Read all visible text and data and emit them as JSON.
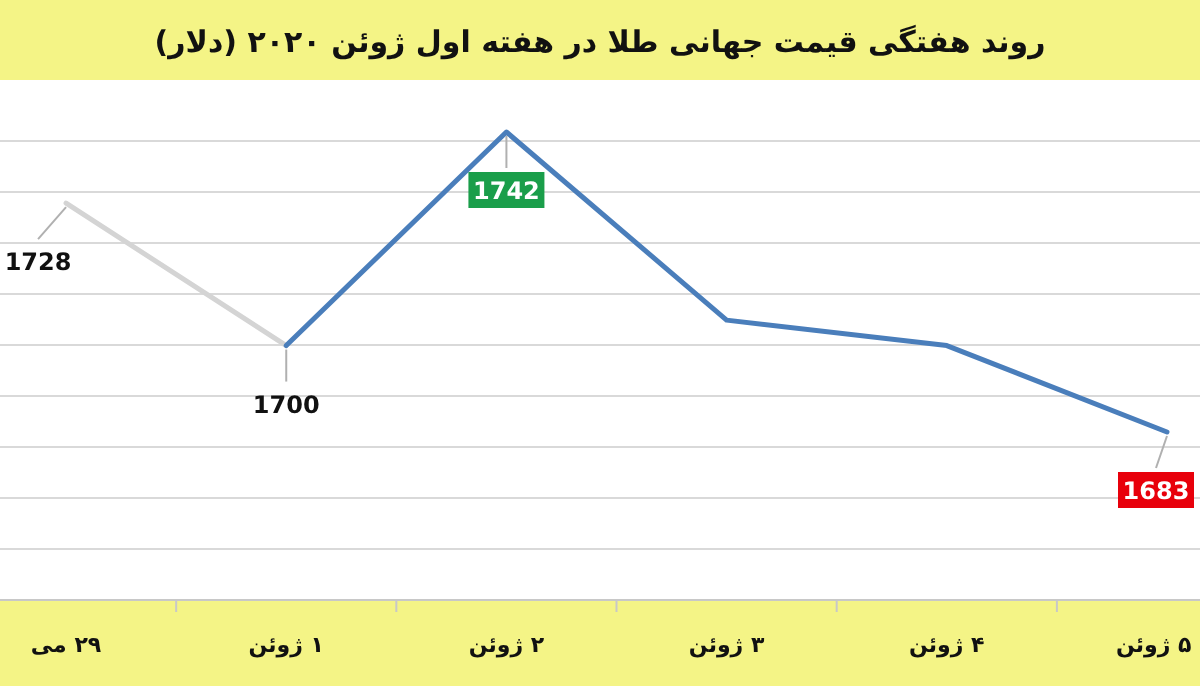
{
  "chart_data": {
    "type": "line",
    "title": "روند هفتگی قیمت جهانی طلا در هفته اول ژوئن ۲۰۲۰ (دلار)",
    "categories": [
      "۲۹ می",
      "۱ ژوئن",
      "۲ ژوئن",
      "۳ ژوئن",
      "۴ ژوئن",
      "۵ ژوئن"
    ],
    "series": [
      {
        "color": "#d4d4d4",
        "values": [
          1728,
          1700,
          null,
          null,
          null,
          null
        ],
        "value_labels": [
          "1728",
          "1700",
          null,
          null,
          null,
          null
        ]
      },
      {
        "color": "#4a7ebb",
        "values": [
          null,
          1700,
          1742,
          1705,
          1700,
          1683
        ],
        "value_labels": [
          null,
          null,
          "1742",
          null,
          null,
          "1683"
        ]
      }
    ],
    "grid": "y"
  }
}
